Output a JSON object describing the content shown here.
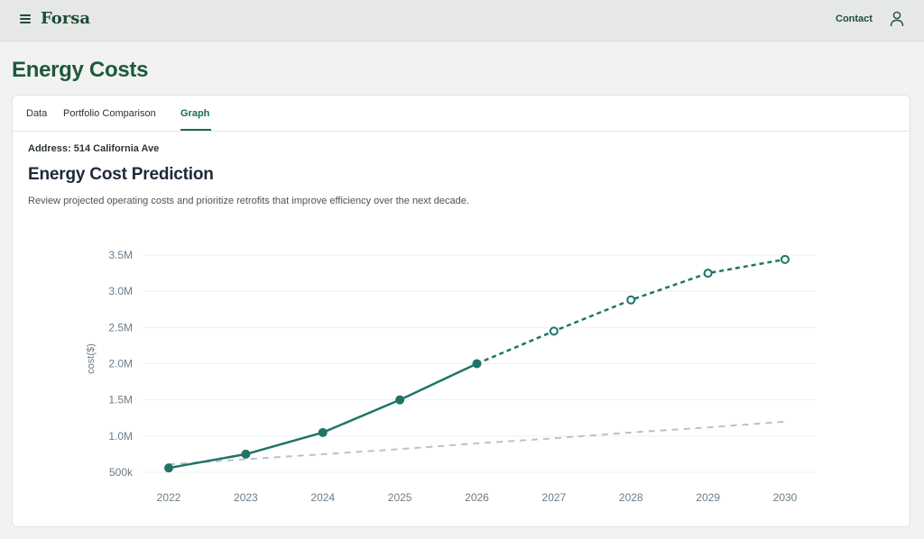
{
  "header": {
    "brand": "Forsa",
    "contact_label": "Contact",
    "menu_icon": "hamburger-menu-icon",
    "user_icon": "user-icon"
  },
  "page": {
    "title": "Energy Costs"
  },
  "tabs": [
    {
      "label": "Data",
      "active": false
    },
    {
      "label": "Portfolio Comparison",
      "active": false
    },
    {
      "label": "Graph",
      "active": true
    }
  ],
  "content": {
    "address": "Address: 514 California Ave",
    "title": "Energy Cost Prediction",
    "description": "Review projected operating costs and prioritize retrofits that improve efficiency over the next decade."
  },
  "colors": {
    "brand": "#1d4e35",
    "accent": "#1a6b5b",
    "series_main": "#1e7566",
    "series_baseline": "#b9c3c8"
  },
  "chart_data": {
    "type": "line",
    "title": "",
    "xlabel": "",
    "ylabel": "cost($)",
    "x": [
      2022,
      2023,
      2024,
      2025,
      2026,
      2027,
      2028,
      2029,
      2030
    ],
    "yticks": [
      "500k",
      "1.0M",
      "1.5M",
      "2.0M",
      "2.5M",
      "3.0M",
      "3.5M"
    ],
    "ylim": [
      500000,
      3500000
    ],
    "grid": true,
    "legend": false,
    "series": [
      {
        "values": [
          560000,
          750000,
          1050000,
          1500000,
          2000000,
          2450000,
          2880000,
          3250000,
          3440000
        ],
        "style": "solid through 2026 with filled markers, dashed projection with hollow markers after 2026",
        "color": "#1e7566"
      },
      {
        "values": [
          610000,
          680000,
          750000,
          820000,
          900000,
          970000,
          1050000,
          1120000,
          1200000
        ],
        "style": "dashed",
        "color": "#b9c3c8"
      }
    ]
  }
}
